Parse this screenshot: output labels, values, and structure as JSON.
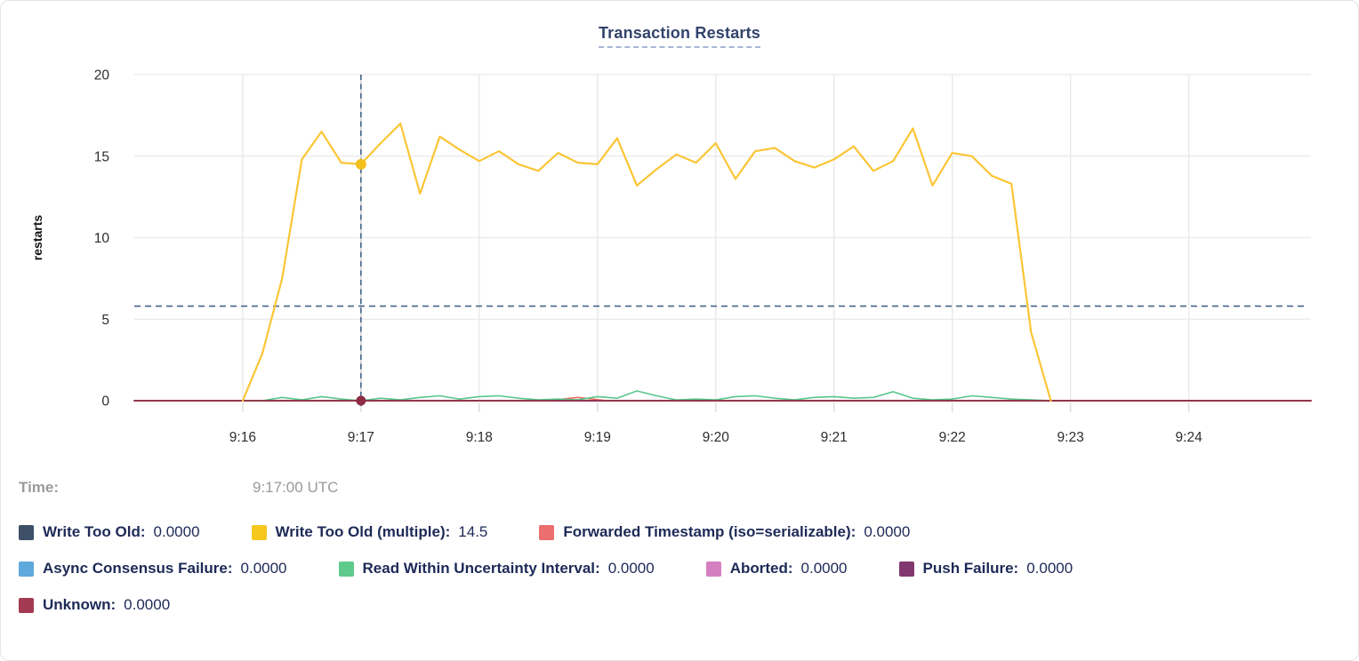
{
  "title": "Transaction Restarts",
  "tooltip": {
    "time_label": "Time:",
    "time_value": "9:17:00 UTC"
  },
  "chart_data": {
    "type": "line",
    "title": "Transaction Restarts",
    "xlabel": "",
    "ylabel": "restarts",
    "ylim": [
      0,
      20
    ],
    "y_ticks": [
      0,
      5,
      10,
      15,
      20
    ],
    "x_ticks": [
      "9:16",
      "9:17",
      "9:18",
      "9:19",
      "9:20",
      "9:21",
      "9:22",
      "9:23",
      "9:24"
    ],
    "x_domain": [
      "9:15:05",
      "9:25:02"
    ],
    "grid": true,
    "hover_time": "9:17:00",
    "threshold_line": 5.8,
    "markers": [
      {
        "time": "9:17:00",
        "value": 14.5,
        "color": "#f4c01e",
        "radius": 6
      },
      {
        "time": "9:17:00",
        "value": 0,
        "color": "#8e2c44",
        "radius": 5.5
      }
    ],
    "series": [
      {
        "name": "Write Too Old",
        "color": "#3e4f68",
        "width": 1.6,
        "points": [
          [
            "9:15:05",
            0
          ],
          [
            "9:25:02",
            0
          ]
        ]
      },
      {
        "name": "Async Consensus Failure",
        "color": "#5fa8dc",
        "width": 1.6,
        "points": [
          [
            "9:15:05",
            0
          ],
          [
            "9:25:02",
            0
          ]
        ]
      },
      {
        "name": "Aborted",
        "color": "#d57fc0",
        "width": 1.6,
        "points": [
          [
            "9:15:05",
            0
          ],
          [
            "9:25:02",
            0
          ]
        ]
      },
      {
        "name": "Push Failure",
        "color": "#81386f",
        "width": 1.6,
        "points": [
          [
            "9:15:05",
            0
          ],
          [
            "9:25:02",
            0
          ]
        ]
      },
      {
        "name": "Forwarded Timestamp (iso=serializable)",
        "color": "#e96b63",
        "width": 1.6,
        "points": [
          [
            "9:15:05",
            0
          ],
          [
            "9:18:35",
            0
          ],
          [
            "9:18:50",
            0.2
          ],
          [
            "9:19:05",
            0
          ],
          [
            "9:25:02",
            0
          ]
        ]
      },
      {
        "name": "Read Within Uncertainty Interval",
        "color": "#57c78a",
        "width": 1.6,
        "points": [
          [
            "9:16:00",
            0
          ],
          [
            "9:16:10",
            0
          ],
          [
            "9:16:20",
            0.2
          ],
          [
            "9:16:30",
            0.05
          ],
          [
            "9:16:40",
            0.25
          ],
          [
            "9:16:50",
            0.1
          ],
          [
            "9:17:00",
            0
          ],
          [
            "9:17:10",
            0.15
          ],
          [
            "9:17:20",
            0.05
          ],
          [
            "9:17:30",
            0.2
          ],
          [
            "9:17:40",
            0.3
          ],
          [
            "9:17:50",
            0.1
          ],
          [
            "9:18:00",
            0.25
          ],
          [
            "9:18:10",
            0.3
          ],
          [
            "9:18:20",
            0.15
          ],
          [
            "9:18:30",
            0.05
          ],
          [
            "9:18:40",
            0.1
          ],
          [
            "9:18:50",
            0.05
          ],
          [
            "9:19:00",
            0.25
          ],
          [
            "9:19:10",
            0.15
          ],
          [
            "9:19:20",
            0.6
          ],
          [
            "9:19:30",
            0.3
          ],
          [
            "9:19:40",
            0.05
          ],
          [
            "9:19:50",
            0.1
          ],
          [
            "9:20:00",
            0.05
          ],
          [
            "9:20:10",
            0.25
          ],
          [
            "9:20:20",
            0.3
          ],
          [
            "9:20:30",
            0.15
          ],
          [
            "9:20:40",
            0.05
          ],
          [
            "9:20:50",
            0.2
          ],
          [
            "9:21:00",
            0.25
          ],
          [
            "9:21:10",
            0.15
          ],
          [
            "9:21:20",
            0.2
          ],
          [
            "9:21:30",
            0.55
          ],
          [
            "9:21:40",
            0.15
          ],
          [
            "9:21:50",
            0.05
          ],
          [
            "9:22:00",
            0.1
          ],
          [
            "9:22:10",
            0.3
          ],
          [
            "9:22:20",
            0.2
          ],
          [
            "9:22:30",
            0.1
          ],
          [
            "9:22:40",
            0.05
          ],
          [
            "9:22:50",
            0
          ]
        ]
      },
      {
        "name": "Unknown",
        "color": "#8e2c44",
        "width": 1.8,
        "points": [
          [
            "9:15:05",
            0
          ],
          [
            "9:25:02",
            0
          ]
        ]
      },
      {
        "name": "Write Too Old (multiple)",
        "color": "#fbc535",
        "width": 2.2,
        "points": [
          [
            "9:16:00",
            0
          ],
          [
            "9:16:10",
            2.9
          ],
          [
            "9:16:20",
            7.5
          ],
          [
            "9:16:30",
            14.8
          ],
          [
            "9:16:40",
            16.5
          ],
          [
            "9:16:50",
            14.6
          ],
          [
            "9:17:00",
            14.5
          ],
          [
            "9:17:10",
            15.8
          ],
          [
            "9:17:20",
            17.0
          ],
          [
            "9:17:30",
            12.7
          ],
          [
            "9:17:40",
            16.2
          ],
          [
            "9:17:50",
            15.4
          ],
          [
            "9:18:00",
            14.7
          ],
          [
            "9:18:10",
            15.3
          ],
          [
            "9:18:20",
            14.5
          ],
          [
            "9:18:30",
            14.1
          ],
          [
            "9:18:40",
            15.2
          ],
          [
            "9:18:50",
            14.6
          ],
          [
            "9:19:00",
            14.5
          ],
          [
            "9:19:10",
            16.1
          ],
          [
            "9:19:20",
            13.2
          ],
          [
            "9:19:30",
            14.2
          ],
          [
            "9:19:40",
            15.1
          ],
          [
            "9:19:50",
            14.6
          ],
          [
            "9:20:00",
            15.8
          ],
          [
            "9:20:10",
            13.6
          ],
          [
            "9:20:20",
            15.3
          ],
          [
            "9:20:30",
            15.5
          ],
          [
            "9:20:40",
            14.7
          ],
          [
            "9:20:50",
            14.3
          ],
          [
            "9:21:00",
            14.8
          ],
          [
            "9:21:10",
            15.6
          ],
          [
            "9:21:20",
            14.1
          ],
          [
            "9:21:30",
            14.7
          ],
          [
            "9:21:40",
            16.7
          ],
          [
            "9:21:50",
            13.2
          ],
          [
            "9:22:00",
            15.2
          ],
          [
            "9:22:10",
            15.0
          ],
          [
            "9:22:20",
            13.8
          ],
          [
            "9:22:30",
            13.3
          ],
          [
            "9:22:40",
            4.2
          ],
          [
            "9:22:50",
            0
          ]
        ]
      }
    ]
  },
  "legend": {
    "rows": [
      [
        {
          "label": "Write Too Old:",
          "value": "0.0000",
          "color": "#3e4f68"
        },
        {
          "label": "Write Too Old (multiple):",
          "value": "14.5",
          "color": "#f6c71f"
        },
        {
          "label": "Forwarded Timestamp (iso=serializable):",
          "value": "0.0000",
          "color": "#ec6e6e"
        }
      ],
      [
        {
          "label": "Async Consensus Failure:",
          "value": "0.0000",
          "color": "#5fa8dc"
        },
        {
          "label": "Read Within Uncertainty Interval:",
          "value": "0.0000",
          "color": "#5ecb8c"
        },
        {
          "label": "Aborted:",
          "value": "0.0000",
          "color": "#d57fc0"
        },
        {
          "label": "Push Failure:",
          "value": "0.0000",
          "color": "#81386f"
        }
      ],
      [
        {
          "label": "Unknown:",
          "value": "0.0000",
          "color": "#a43a52"
        }
      ]
    ]
  },
  "colors": {
    "title": "#32436b",
    "legend_text": "#1d2a57",
    "tooltip_text": "#9a9a9a",
    "grid": "#e9e9e9",
    "crosshair_dash": "#44658a",
    "crosshair_base": "#d2d2d2"
  }
}
